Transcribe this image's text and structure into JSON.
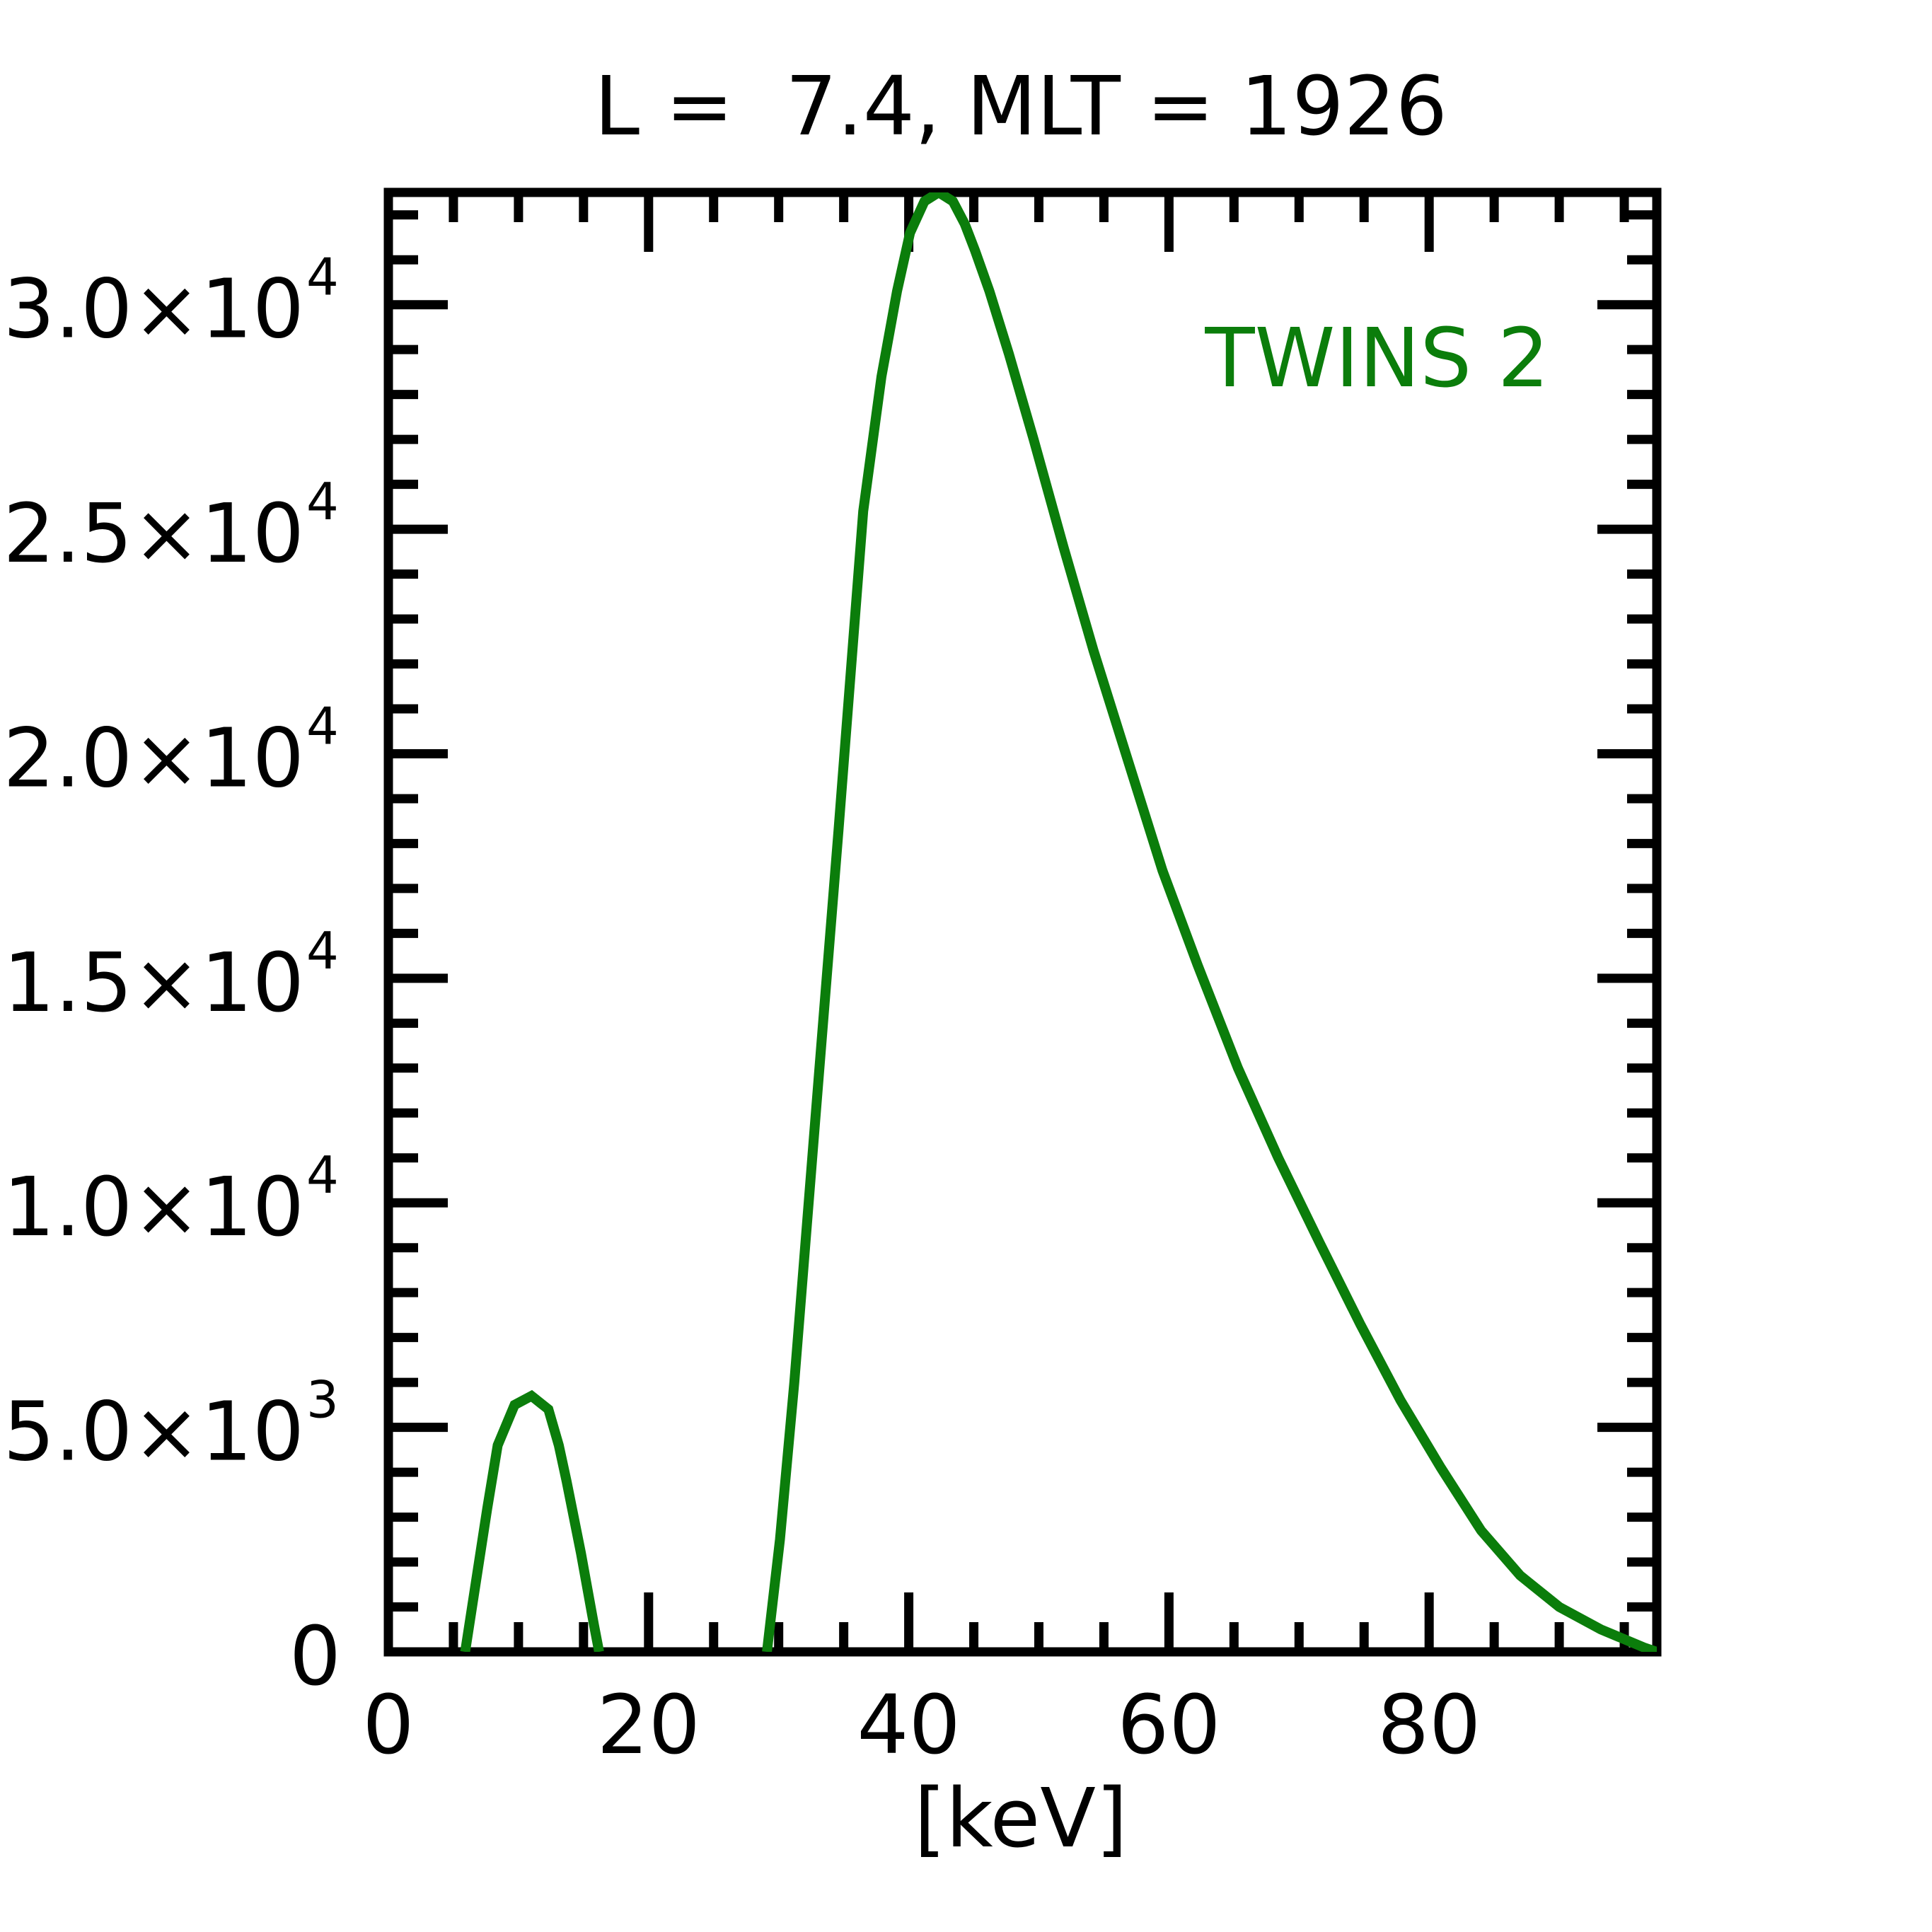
{
  "chart_data": {
    "type": "line",
    "title": "L =  7.4, MLT = 1926",
    "xlabel": "[keV]",
    "ylabel": "",
    "xlim": [
      0,
      97.5
    ],
    "ylim": [
      0,
      32500
    ],
    "x_ticks": [
      0,
      20,
      40,
      60,
      80
    ],
    "x_tick_labels": [
      "0",
      "20",
      "40",
      "60",
      "80"
    ],
    "y_ticks": [
      {
        "value": 0,
        "mantissa": "0",
        "exponent": ""
      },
      {
        "value": 5000,
        "mantissa": "5.0×10",
        "exponent": "3"
      },
      {
        "value": 10000,
        "mantissa": "1.0×10",
        "exponent": "4"
      },
      {
        "value": 15000,
        "mantissa": "1.5×10",
        "exponent": "4"
      },
      {
        "value": 20000,
        "mantissa": "2.0×10",
        "exponent": "4"
      },
      {
        "value": 25000,
        "mantissa": "2.5×10",
        "exponent": "4"
      },
      {
        "value": 30000,
        "mantissa": "3.0×10",
        "exponent": "4"
      }
    ],
    "x_minor_step": 5,
    "y_minor_step": 1000,
    "grid": false,
    "legend_position": "top-right",
    "series": [
      {
        "name": "TWINS 2",
        "color": "#0b7d0b",
        "segments": [
          {
            "x": [
              5.9,
              7.6,
              8.4,
              9.7,
              11.0,
              12.3,
              13.1,
              13.7,
              14.8,
              15.8,
              16.2
            ],
            "y": [
              0,
              3200,
              4600,
              5500,
              5700,
              5400,
              4600,
              3800,
              2200,
              600,
              0
            ]
          },
          {
            "x": [
              29.1,
              30.1,
              31.2,
              32.8,
              34.6,
              36.5,
              37.9,
              39.1,
              40.1,
              41.2,
              42.3,
              43.4,
              44.3,
              45.1,
              46.2,
              47.7,
              49.6,
              51.9,
              54.2,
              56.9,
              59.5,
              62.2,
              65.3,
              68.4,
              71.6,
              74.7,
              77.8,
              80.9,
              84.0,
              87.0,
              90.0,
              93.2,
              96.5,
              97.5
            ],
            "y": [
              0,
              2500,
              6000,
              11800,
              18300,
              25400,
              28400,
              30300,
              31600,
              32300,
              32500,
              32300,
              31800,
              31200,
              30300,
              28900,
              27000,
              24600,
              22300,
              19800,
              17400,
              15300,
              13000,
              11000,
              9100,
              7300,
              5600,
              4100,
              2700,
              1700,
              1000,
              500,
              100,
              0
            ]
          }
        ]
      }
    ]
  }
}
